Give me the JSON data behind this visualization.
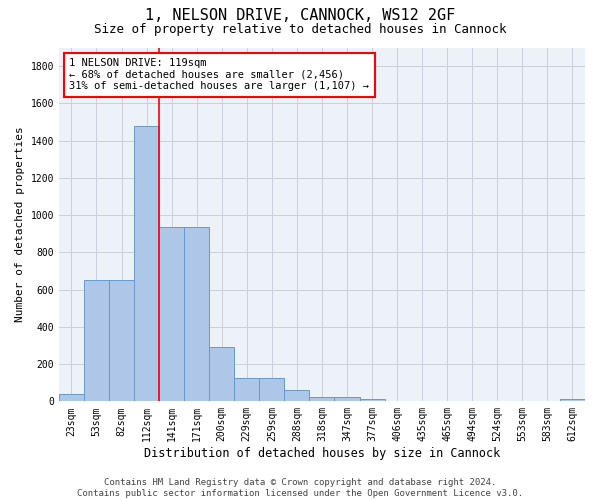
{
  "title_line1": "1, NELSON DRIVE, CANNOCK, WS12 2GF",
  "title_line2": "Size of property relative to detached houses in Cannock",
  "xlabel": "Distribution of detached houses by size in Cannock",
  "ylabel": "Number of detached properties",
  "categories": [
    "23sqm",
    "53sqm",
    "82sqm",
    "112sqm",
    "141sqm",
    "171sqm",
    "200sqm",
    "229sqm",
    "259sqm",
    "288sqm",
    "318sqm",
    "347sqm",
    "377sqm",
    "406sqm",
    "435sqm",
    "465sqm",
    "494sqm",
    "524sqm",
    "553sqm",
    "583sqm",
    "612sqm"
  ],
  "values": [
    37,
    651,
    651,
    1476,
    938,
    938,
    290,
    127,
    127,
    62,
    25,
    25,
    15,
    0,
    0,
    0,
    0,
    0,
    0,
    0,
    15
  ],
  "bar_color": "#aec6e8",
  "bar_edge_color": "#6699cc",
  "vline_x": 3.5,
  "vline_color": "red",
  "annotation_text": "1 NELSON DRIVE: 119sqm\n← 68% of detached houses are smaller (2,456)\n31% of semi-detached houses are larger (1,107) →",
  "annotation_box_color": "white",
  "annotation_box_edge_color": "red",
  "ylim": [
    0,
    1900
  ],
  "yticks": [
    0,
    200,
    400,
    600,
    800,
    1000,
    1200,
    1400,
    1600,
    1800
  ],
  "grid_color": "#c8d0dc",
  "background_color": "#edf1f8",
  "footer_text": "Contains HM Land Registry data © Crown copyright and database right 2024.\nContains public sector information licensed under the Open Government Licence v3.0.",
  "title_fontsize": 11,
  "subtitle_fontsize": 9,
  "axis_label_fontsize": 8,
  "tick_fontsize": 7,
  "annotation_fontsize": 7.5,
  "footer_fontsize": 6.5
}
